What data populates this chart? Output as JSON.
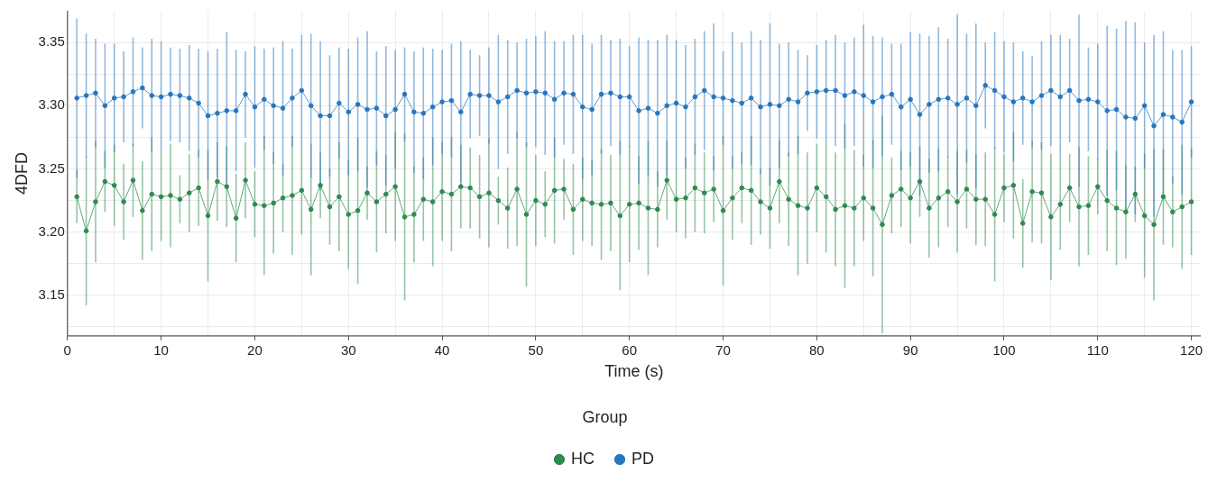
{
  "chart_data": {
    "type": "line",
    "xlabel": "Time (s)",
    "ylabel": "4DFD",
    "legend_title": "Group",
    "legend": "bottom",
    "grid": true,
    "marker": "circle",
    "line_style": "solid",
    "x": [
      1,
      2,
      3,
      4,
      5,
      6,
      7,
      8,
      9,
      10,
      11,
      12,
      13,
      14,
      15,
      16,
      17,
      18,
      19,
      20,
      21,
      22,
      23,
      24,
      25,
      26,
      27,
      28,
      29,
      30,
      31,
      32,
      33,
      34,
      35,
      36,
      37,
      38,
      39,
      40,
      41,
      42,
      43,
      44,
      45,
      46,
      47,
      48,
      49,
      50,
      51,
      52,
      53,
      54,
      55,
      56,
      57,
      58,
      59,
      60,
      61,
      62,
      63,
      64,
      65,
      66,
      67,
      68,
      69,
      70,
      71,
      72,
      73,
      74,
      75,
      76,
      77,
      78,
      79,
      80,
      81,
      82,
      83,
      84,
      85,
      86,
      87,
      88,
      89,
      90,
      91,
      92,
      93,
      94,
      95,
      96,
      97,
      98,
      99,
      100,
      101,
      102,
      103,
      104,
      105,
      106,
      107,
      108,
      109,
      110,
      111,
      112,
      113,
      114,
      115,
      116,
      117,
      118,
      119,
      120
    ],
    "xlim": [
      0,
      121
    ],
    "xticks": [
      0,
      {
        "value": 5,
        "label": null
      },
      10,
      {
        "value": 15,
        "label": null
      },
      20,
      {
        "value": 25,
        "label": null
      },
      30,
      {
        "value": 35,
        "label": null
      },
      40,
      {
        "value": 45,
        "label": null
      },
      50,
      {
        "value": 55,
        "label": null
      },
      60,
      {
        "value": 65,
        "label": null
      },
      70,
      {
        "value": 75,
        "label": null
      },
      80,
      {
        "value": 85,
        "label": null
      },
      90,
      {
        "value": 95,
        "label": null
      },
      100,
      {
        "value": 105,
        "label": null
      },
      110,
      {
        "value": 115,
        "label": null
      },
      120
    ],
    "ylim": [
      3.118,
      3.375
    ],
    "yticks": [
      {
        "value": 3.125,
        "label": null
      },
      3.15,
      {
        "value": 3.175,
        "label": null
      },
      {
        "value": 3.2,
        "label": "3.20"
      },
      {
        "value": 3.225,
        "label": null
      },
      3.25,
      {
        "value": 3.275,
        "label": null
      },
      {
        "value": 3.3,
        "label": "3.30"
      },
      {
        "value": 3.325,
        "label": null
      },
      3.35
    ],
    "series": [
      {
        "name": "HC",
        "color": "#2e8b4e",
        "values": [
          3.228,
          3.201,
          3.224,
          3.24,
          3.237,
          3.224,
          3.241,
          3.217,
          3.23,
          3.228,
          3.229,
          3.226,
          3.231,
          3.235,
          3.213,
          3.24,
          3.236,
          3.211,
          3.241,
          3.222,
          3.221,
          3.223,
          3.227,
          3.229,
          3.233,
          3.218,
          3.237,
          3.22,
          3.228,
          3.214,
          3.217,
          3.231,
          3.224,
          3.23,
          3.236,
          3.212,
          3.214,
          3.226,
          3.224,
          3.232,
          3.23,
          3.236,
          3.235,
          3.228,
          3.231,
          3.225,
          3.219,
          3.234,
          3.214,
          3.225,
          3.222,
          3.233,
          3.234,
          3.218,
          3.226,
          3.223,
          3.222,
          3.223,
          3.213,
          3.222,
          3.223,
          3.219,
          3.218,
          3.241,
          3.226,
          3.227,
          3.235,
          3.231,
          3.234,
          3.217,
          3.227,
          3.235,
          3.233,
          3.224,
          3.219,
          3.24,
          3.226,
          3.221,
          3.219,
          3.235,
          3.228,
          3.218,
          3.221,
          3.219,
          3.227,
          3.219,
          3.206,
          3.229,
          3.234,
          3.227,
          3.24,
          3.219,
          3.227,
          3.232,
          3.224,
          3.234,
          3.226,
          3.226,
          3.214,
          3.235,
          3.237,
          3.207,
          3.232,
          3.231,
          3.212,
          3.222,
          3.235,
          3.22,
          3.221,
          3.236,
          3.225,
          3.219,
          3.216,
          3.23,
          3.213,
          3.206,
          3.228,
          3.216,
          3.22,
          3.224
        ],
        "errors": [
          0.021,
          0.059,
          0.048,
          0.024,
          0.032,
          0.03,
          0.029,
          0.039,
          0.045,
          0.035,
          0.041,
          0.019,
          0.031,
          0.03,
          0.052,
          0.031,
          0.032,
          0.035,
          0.03,
          0.026,
          0.055,
          0.04,
          0.027,
          0.047,
          0.035,
          0.052,
          0.026,
          0.03,
          0.043,
          0.043,
          0.058,
          0.021,
          0.04,
          0.031,
          0.043,
          0.066,
          0.038,
          0.033,
          0.051,
          0.039,
          0.045,
          0.033,
          0.032,
          0.033,
          0.043,
          0.019,
          0.032,
          0.045,
          0.057,
          0.036,
          0.026,
          0.042,
          0.024,
          0.036,
          0.033,
          0.034,
          0.044,
          0.038,
          0.059,
          0.046,
          0.037,
          0.053,
          0.03,
          0.031,
          0.026,
          0.032,
          0.035,
          0.032,
          0.026,
          0.059,
          0.033,
          0.028,
          0.043,
          0.026,
          0.032,
          0.033,
          0.037,
          0.055,
          0.044,
          0.035,
          0.044,
          0.045,
          0.065,
          0.046,
          0.034,
          0.054,
          0.086,
          0.03,
          0.03,
          0.036,
          0.028,
          0.039,
          0.039,
          0.028,
          0.04,
          0.031,
          0.036,
          0.037,
          0.053,
          0.027,
          0.042,
          0.035,
          0.04,
          0.04,
          0.05,
          0.036,
          0.027,
          0.047,
          0.039,
          0.022,
          0.04,
          0.045,
          0.037,
          0.022,
          0.049,
          0.06,
          0.038,
          0.028,
          0.049,
          0.042
        ]
      },
      {
        "name": "PD",
        "color": "#2676c0",
        "values": [
          3.306,
          3.308,
          3.31,
          3.3,
          3.306,
          3.307,
          3.311,
          3.314,
          3.308,
          3.307,
          3.309,
          3.308,
          3.306,
          3.302,
          3.292,
          3.294,
          3.296,
          3.296,
          3.309,
          3.299,
          3.305,
          3.3,
          3.298,
          3.306,
          3.312,
          3.3,
          3.292,
          3.292,
          3.302,
          3.295,
          3.301,
          3.297,
          3.298,
          3.292,
          3.297,
          3.309,
          3.295,
          3.294,
          3.299,
          3.303,
          3.304,
          3.295,
          3.309,
          3.308,
          3.308,
          3.303,
          3.307,
          3.312,
          3.31,
          3.311,
          3.31,
          3.305,
          3.31,
          3.309,
          3.299,
          3.297,
          3.309,
          3.31,
          3.307,
          3.307,
          3.296,
          3.298,
          3.294,
          3.3,
          3.302,
          3.299,
          3.307,
          3.312,
          3.307,
          3.306,
          3.304,
          3.302,
          3.306,
          3.299,
          3.301,
          3.3,
          3.305,
          3.303,
          3.31,
          3.311,
          3.312,
          3.312,
          3.308,
          3.311,
          3.308,
          3.303,
          3.307,
          3.309,
          3.299,
          3.305,
          3.293,
          3.301,
          3.305,
          3.306,
          3.301,
          3.306,
          3.3,
          3.316,
          3.312,
          3.307,
          3.303,
          3.306,
          3.303,
          3.308,
          3.312,
          3.307,
          3.312,
          3.304,
          3.305,
          3.303,
          3.296,
          3.297,
          3.291,
          3.29,
          3.3,
          3.284,
          3.293,
          3.291,
          3.287,
          3.303
        ],
        "errors": [
          0.063,
          0.049,
          0.043,
          0.049,
          0.043,
          0.036,
          0.043,
          0.032,
          0.045,
          0.044,
          0.037,
          0.037,
          0.042,
          0.043,
          0.051,
          0.051,
          0.062,
          0.048,
          0.034,
          0.048,
          0.04,
          0.046,
          0.053,
          0.039,
          0.044,
          0.057,
          0.059,
          0.048,
          0.044,
          0.05,
          0.053,
          0.062,
          0.045,
          0.055,
          0.047,
          0.037,
          0.048,
          0.052,
          0.046,
          0.041,
          0.045,
          0.056,
          0.035,
          0.032,
          0.038,
          0.053,
          0.045,
          0.038,
          0.043,
          0.044,
          0.049,
          0.046,
          0.041,
          0.047,
          0.057,
          0.052,
          0.047,
          0.042,
          0.046,
          0.04,
          0.058,
          0.054,
          0.058,
          0.056,
          0.05,
          0.049,
          0.046,
          0.047,
          0.058,
          0.037,
          0.054,
          0.048,
          0.053,
          0.053,
          0.064,
          0.049,
          0.045,
          0.041,
          0.03,
          0.037,
          0.04,
          0.044,
          0.042,
          0.043,
          0.056,
          0.052,
          0.047,
          0.04,
          0.05,
          0.053,
          0.064,
          0.054,
          0.057,
          0.047,
          0.071,
          0.051,
          0.065,
          0.034,
          0.046,
          0.044,
          0.047,
          0.037,
          0.036,
          0.043,
          0.044,
          0.049,
          0.041,
          0.068,
          0.041,
          0.046,
          0.067,
          0.064,
          0.076,
          0.076,
          0.05,
          0.072,
          0.066,
          0.053,
          0.057,
          0.044
        ]
      }
    ]
  }
}
